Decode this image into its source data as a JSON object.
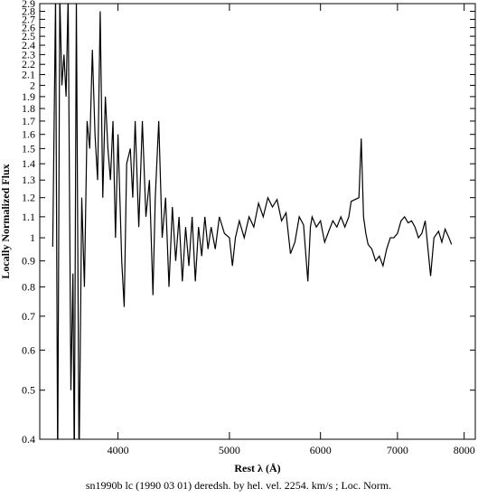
{
  "chart_data": {
    "type": "line",
    "xlabel": "Rest λ (Å)",
    "ylabel": "Locally Normalized Flux",
    "caption": "sn1990b lc (1990 03 01) deredsh. by hel. vel.  2254. km/s ;  Loc. Norm.",
    "xlog": true,
    "ylog": true,
    "xlim": [
      3420,
      8180
    ],
    "ylim": [
      0.4,
      2.9
    ],
    "xticks": [
      4000,
      5000,
      6000,
      7000,
      8000
    ],
    "yticks": [
      0.4,
      0.5,
      0.6,
      0.7,
      0.8,
      0.9,
      1,
      1.1,
      1.2,
      1.3,
      1.4,
      1.5,
      1.6,
      1.7,
      1.8,
      1.9,
      2,
      2.1,
      2.2,
      2.3,
      2.4,
      2.5,
      2.6,
      2.7,
      2.8,
      2.9
    ],
    "series": [
      {
        "color": "#000000",
        "x": [
          3510,
          3530,
          3545,
          3560,
          3575,
          3590,
          3605,
          3620,
          3640,
          3655,
          3665,
          3680,
          3700,
          3720,
          3740,
          3760,
          3780,
          3800,
          3820,
          3840,
          3860,
          3880,
          3900,
          3920,
          3940,
          3960,
          3980,
          4000,
          4030,
          4050,
          4070,
          4100,
          4120,
          4140,
          4170,
          4200,
          4230,
          4260,
          4290,
          4310,
          4340,
          4370,
          4400,
          4430,
          4460,
          4490,
          4520,
          4550,
          4580,
          4610,
          4640,
          4670,
          4700,
          4730,
          4760,
          4790,
          4820,
          4860,
          4900,
          4950,
          5000,
          5030,
          5060,
          5100,
          5150,
          5200,
          5250,
          5300,
          5350,
          5400,
          5450,
          5500,
          5550,
          5600,
          5650,
          5700,
          5750,
          5800,
          5850,
          5880,
          5900,
          5950,
          6000,
          6050,
          6100,
          6150,
          6200,
          6250,
          6300,
          6350,
          6380,
          6480,
          6510,
          6540,
          6570,
          6600,
          6650,
          6700,
          6750,
          6800,
          6850,
          6900,
          6950,
          7000,
          7050,
          7100,
          7150,
          7200,
          7250,
          7300,
          7350,
          7400,
          7480,
          7530,
          7600,
          7650,
          7700,
          7760,
          7800
        ],
        "values": [
          0.96,
          3.0,
          0.35,
          3.0,
          2.0,
          2.3,
          1.9,
          3.0,
          0.5,
          0.85,
          0.35,
          3.0,
          0.35,
          1.2,
          0.8,
          1.7,
          1.5,
          2.35,
          1.6,
          1.3,
          2.8,
          1.2,
          1.9,
          1.5,
          1.3,
          1.7,
          1.0,
          1.6,
          0.9,
          0.73,
          1.4,
          1.5,
          1.2,
          1.7,
          1.05,
          1.7,
          1.1,
          1.3,
          0.77,
          1.2,
          1.7,
          1.0,
          1.2,
          0.8,
          1.15,
          0.9,
          1.1,
          0.82,
          1.05,
          0.88,
          1.1,
          0.82,
          1.05,
          0.92,
          1.1,
          0.95,
          1.05,
          0.95,
          1.1,
          1.02,
          1.0,
          0.88,
          1.0,
          1.08,
          1.0,
          1.1,
          1.05,
          1.17,
          1.1,
          1.2,
          1.15,
          1.19,
          1.08,
          1.12,
          0.93,
          0.98,
          1.1,
          1.06,
          0.82,
          1.05,
          1.1,
          1.05,
          1.08,
          0.98,
          1.03,
          1.08,
          1.05,
          1.1,
          1.05,
          1.1,
          1.18,
          1.2,
          1.57,
          1.1,
          1.02,
          0.97,
          0.95,
          0.9,
          0.92,
          0.88,
          0.95,
          1.0,
          1.0,
          1.02,
          1.08,
          1.1,
          1.07,
          1.08,
          1.05,
          1.0,
          1.02,
          1.08,
          0.84,
          1.0,
          1.03,
          0.98,
          1.04,
          1.0,
          0.97
        ]
      }
    ]
  }
}
